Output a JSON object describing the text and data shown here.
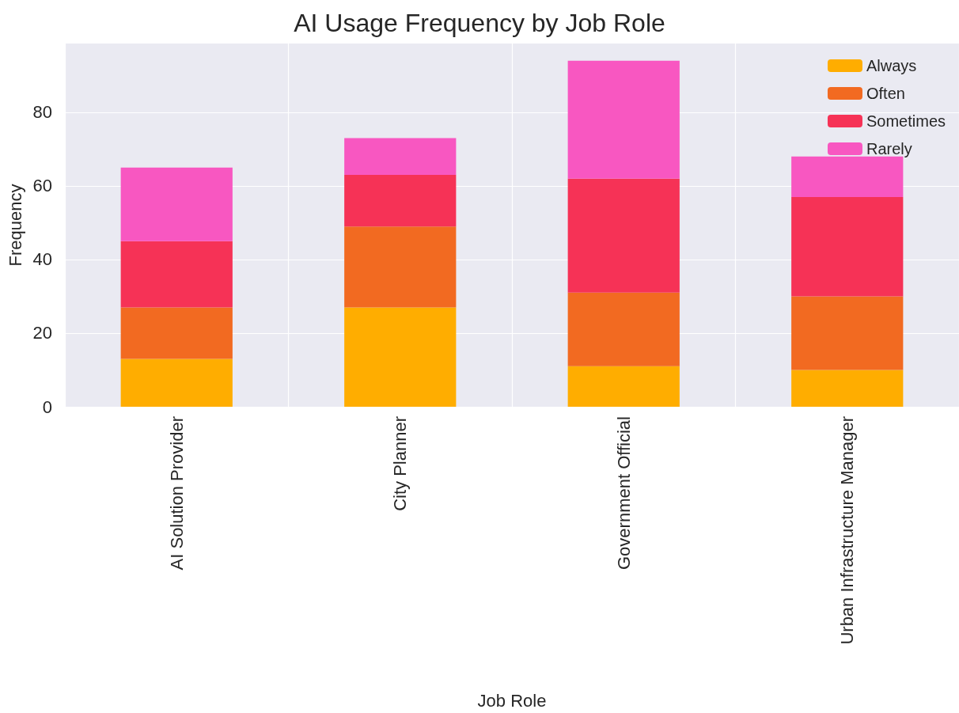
{
  "chart_data": {
    "type": "bar",
    "title": "AI Usage Frequency by Job Role",
    "xlabel": "Job Role",
    "ylabel": "Frequency",
    "categories": [
      "AI Solution Provider",
      "City Planner",
      "Government Official",
      "Urban Infrastructure Manager"
    ],
    "stacked": true,
    "series": [
      {
        "name": "Always",
        "color": "#ffad00",
        "values": [
          13,
          27,
          11,
          10
        ]
      },
      {
        "name": "Often",
        "color": "#f26a21",
        "values": [
          14,
          22,
          20,
          20
        ]
      },
      {
        "name": "Sometimes",
        "color": "#f63256",
        "values": [
          18,
          14,
          31,
          27
        ]
      },
      {
        "name": "Rarely",
        "color": "#f857c1",
        "values": [
          20,
          10,
          32,
          11
        ]
      }
    ],
    "ylim": [
      0,
      98.7
    ],
    "yticks": [
      0,
      20,
      40,
      60,
      80
    ],
    "grid": true,
    "legend": "top right"
  }
}
